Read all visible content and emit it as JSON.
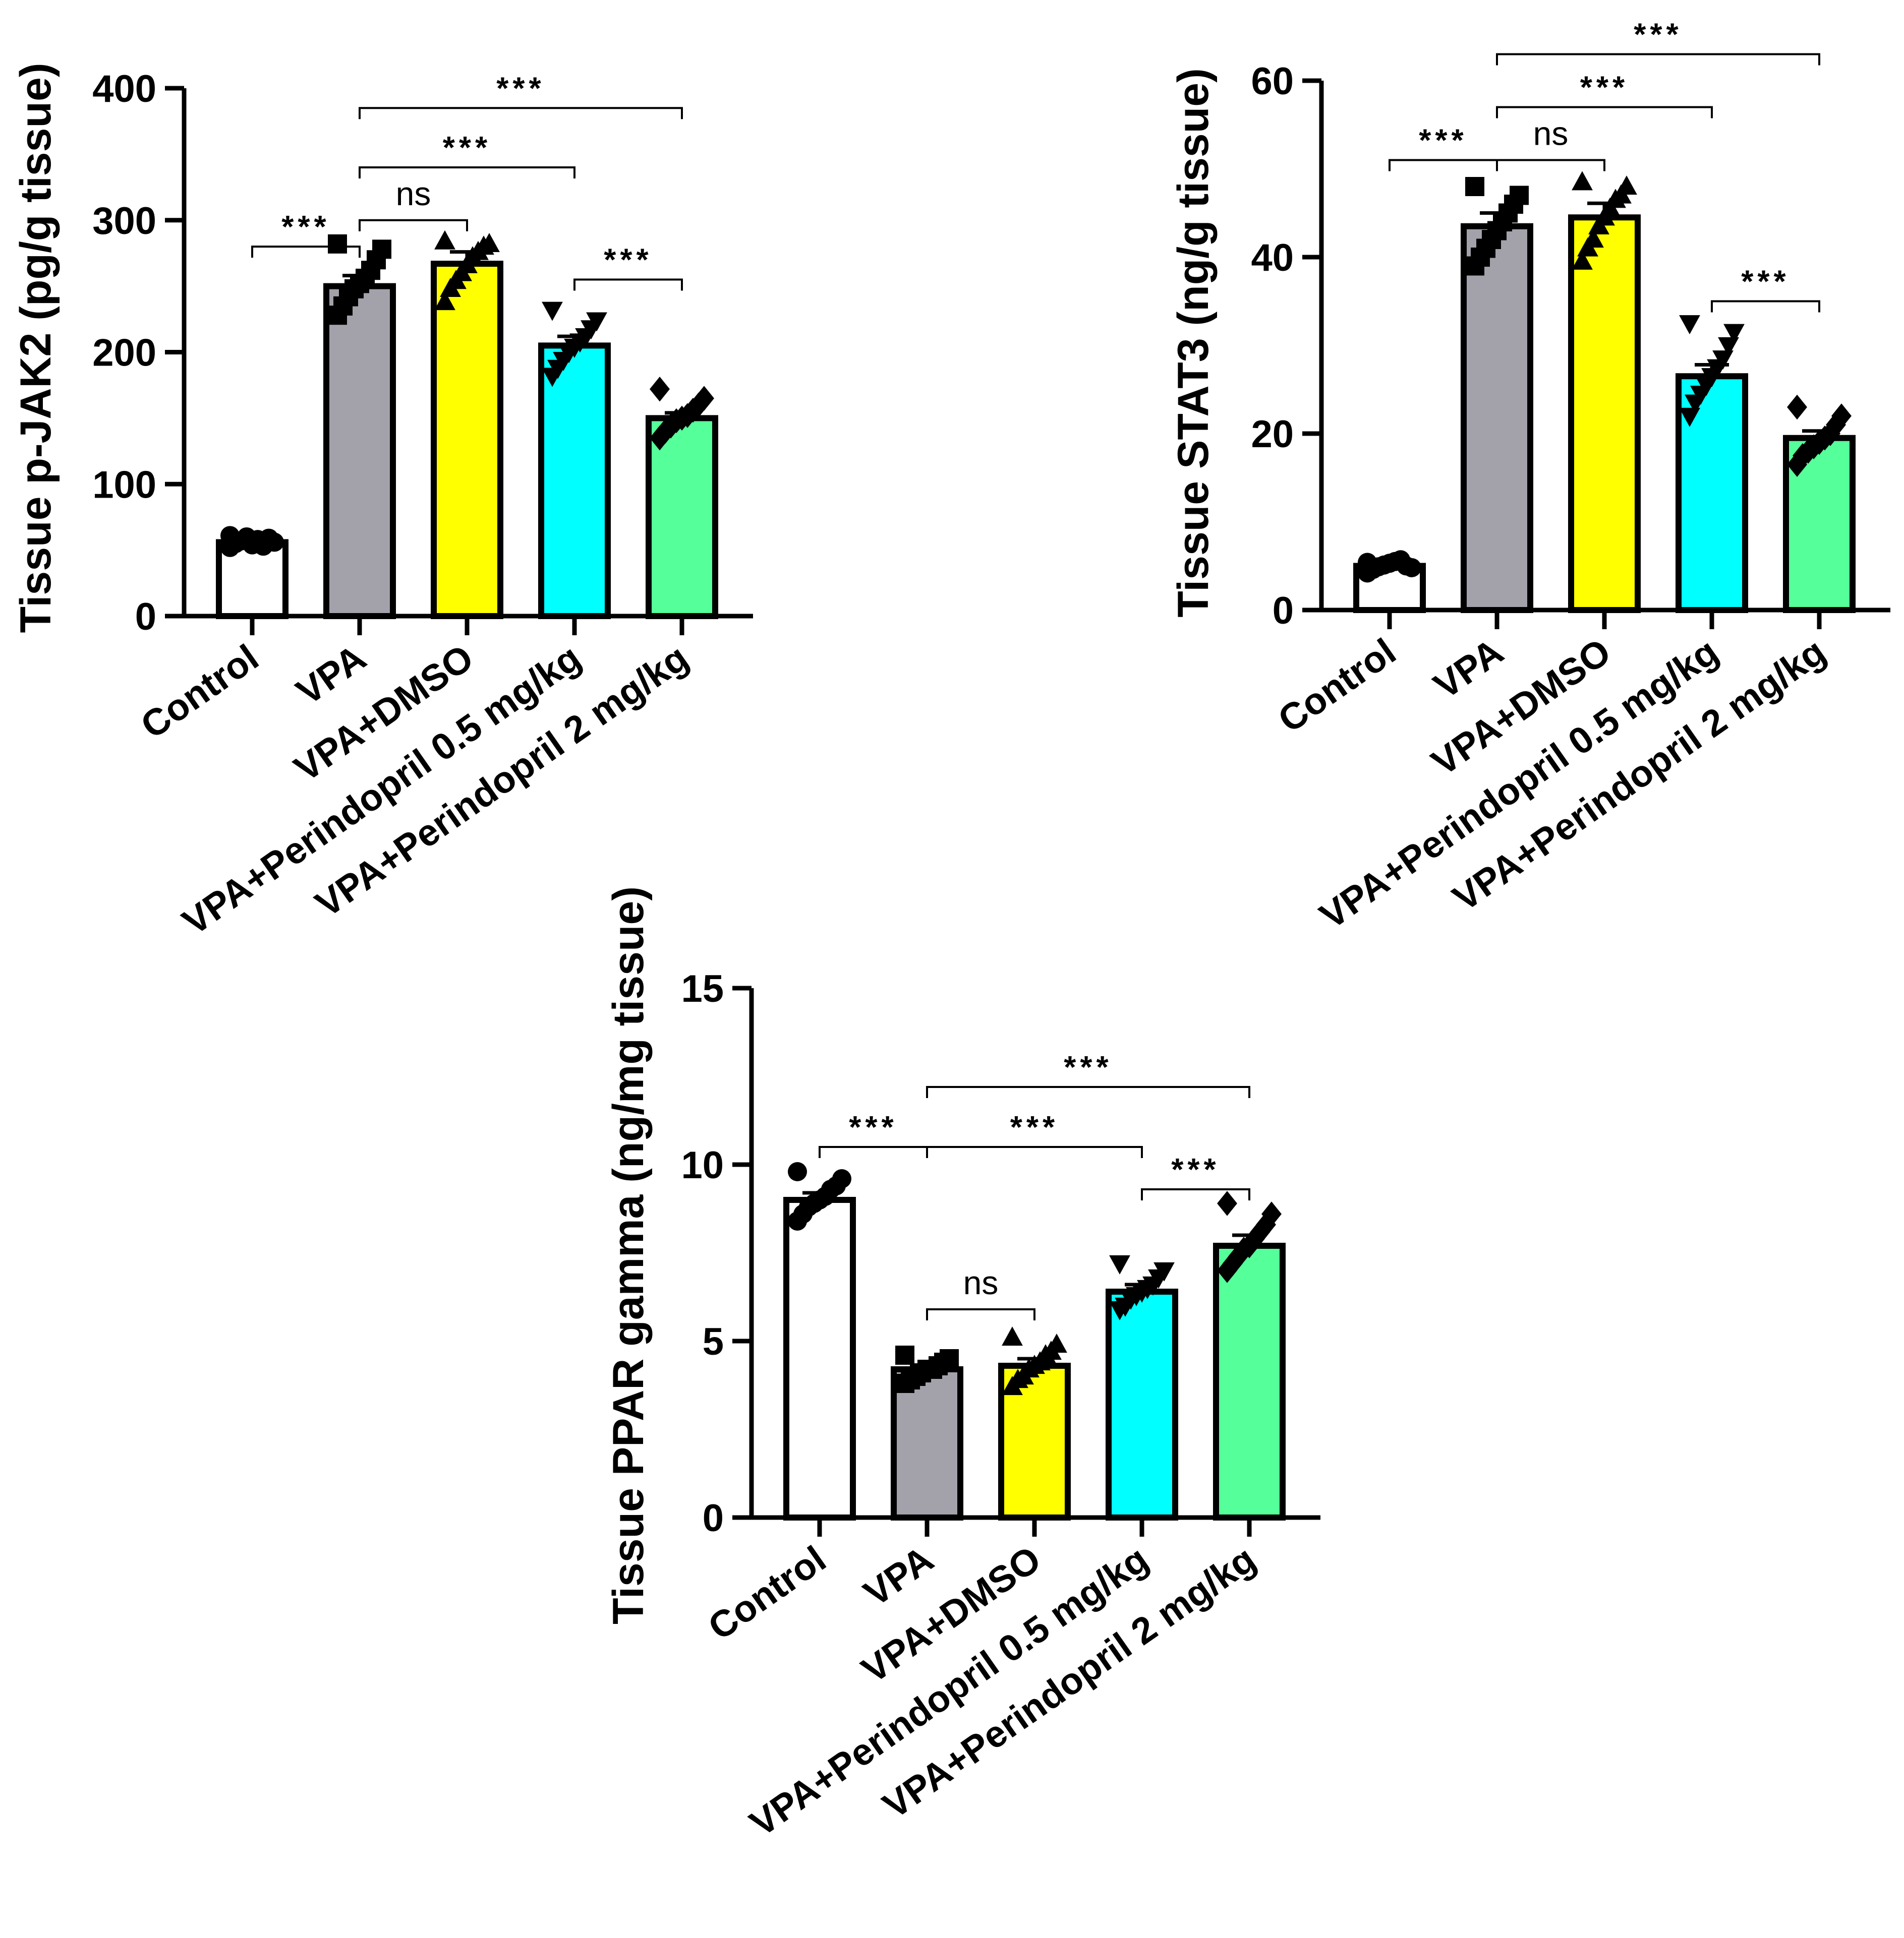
{
  "figure": {
    "colors": {
      "axis": "#000000",
      "bar_fills": [
        "#ffffff",
        "#a3a2ab",
        "#ffff00",
        "#00ffff",
        "#55ff99"
      ],
      "marker": "#000000",
      "bracket": "#000000"
    },
    "marker_shapes": [
      "circle",
      "square",
      "triangle-up",
      "triangle-down",
      "diamond"
    ]
  },
  "chart_data": [
    {
      "id": "jak2",
      "type": "bar",
      "title": "",
      "ylabel": "Tissue p-JAK2 (pg/g tissue)",
      "xlabel": "",
      "ylim": [
        0,
        400
      ],
      "yticks": [
        0,
        100,
        200,
        300,
        400
      ],
      "grid": false,
      "categories": [
        "Control",
        "VPA",
        "VPA+DMSO",
        "VPA+Perindopril 0.5 mg/kg",
        "VPA+Perindopril 2 mg/kg"
      ],
      "values": [
        56,
        250,
        267,
        205,
        150
      ],
      "errors": [
        3,
        8,
        9,
        7,
        4
      ],
      "points": [
        [
          52,
          55,
          57,
          60,
          54,
          58,
          53,
          59,
          56,
          61
        ],
        [
          228,
          235,
          242,
          248,
          252,
          256,
          262,
          270,
          278,
          282
        ],
        [
          238,
          248,
          254,
          260,
          266,
          272,
          276,
          280,
          282,
          284
        ],
        [
          182,
          188,
          194,
          200,
          204,
          208,
          212,
          218,
          224,
          232
        ],
        [
          135,
          140,
          144,
          148,
          150,
          152,
          156,
          160,
          165,
          172
        ]
      ],
      "significance": [
        {
          "from": 0,
          "to": 1,
          "label": "***",
          "level": 280
        },
        {
          "from": 1,
          "to": 2,
          "label": "ns",
          "level": 300
        },
        {
          "from": 1,
          "to": 3,
          "label": "***",
          "level": 340
        },
        {
          "from": 1,
          "to": 4,
          "label": "***",
          "level": 385
        },
        {
          "from": 3,
          "to": 4,
          "label": "***",
          "level": 255
        }
      ]
    },
    {
      "id": "stat3",
      "type": "bar",
      "title": "",
      "ylabel": "Tissue STAT3 (ng/g tissue)",
      "xlabel": "",
      "ylim": [
        0,
        60
      ],
      "yticks": [
        0,
        20,
        40,
        60
      ],
      "grid": false,
      "categories": [
        "Control",
        "VPA",
        "VPA+DMSO",
        "VPA+Perindopril 0.5 mg/kg",
        "VPA+Perindopril 2 mg/kg"
      ],
      "values": [
        5,
        43.5,
        44.5,
        26.5,
        19.5
      ],
      "errors": [
        0.4,
        1.5,
        1.6,
        1.3,
        0.8
      ],
      "points": [
        [
          4.2,
          4.6,
          4.9,
          5.1,
          5.3,
          5.5,
          5.7,
          5.0,
          4.8,
          5.4
        ],
        [
          39,
          40,
          41,
          42,
          43,
          44,
          45,
          46,
          47,
          48
        ],
        [
          39.5,
          41,
          42,
          43.5,
          44.5,
          45.5,
          46.5,
          47,
          48,
          48.5
        ],
        [
          22,
          23.5,
          24.5,
          25.5,
          26.5,
          27.5,
          28.5,
          30,
          31.5,
          32.5
        ],
        [
          16.5,
          17.5,
          18,
          18.5,
          19,
          19.5,
          20,
          21,
          22,
          23
        ]
      ],
      "significance": [
        {
          "from": 0,
          "to": 1,
          "label": "***",
          "level": 51
        },
        {
          "from": 1,
          "to": 2,
          "label": "ns",
          "level": 51
        },
        {
          "from": 1,
          "to": 3,
          "label": "***",
          "level": 57
        },
        {
          "from": 1,
          "to": 4,
          "label": "***",
          "level": 63
        },
        {
          "from": 3,
          "to": 4,
          "label": "***",
          "level": 35
        }
      ]
    },
    {
      "id": "ppar",
      "type": "bar",
      "title": "",
      "ylabel": "Tissue PPAR gamma (ng/mg tissue)",
      "xlabel": "",
      "ylim": [
        0,
        15
      ],
      "yticks": [
        0,
        5,
        10,
        15
      ],
      "grid": false,
      "categories": [
        "Control",
        "VPA",
        "VPA+DMSO",
        "VPA+Perindopril 0.5 mg/kg",
        "VPA+Perindopril 2 mg/kg"
      ],
      "values": [
        9,
        4.2,
        4.3,
        6.4,
        7.7
      ],
      "errors": [
        0.2,
        0.1,
        0.2,
        0.2,
        0.3
      ],
      "points": [
        [
          8.4,
          8.6,
          8.8,
          8.9,
          9.0,
          9.1,
          9.3,
          9.4,
          9.6,
          9.8
        ],
        [
          3.8,
          3.9,
          4.0,
          4.1,
          4.2,
          4.2,
          4.3,
          4.4,
          4.5,
          4.6
        ],
        [
          3.7,
          3.9,
          4.0,
          4.2,
          4.3,
          4.4,
          4.6,
          4.7,
          4.9,
          5.1
        ],
        [
          5.9,
          6.0,
          6.2,
          6.3,
          6.4,
          6.5,
          6.6,
          6.8,
          7.0,
          7.2
        ],
        [
          7.0,
          7.2,
          7.4,
          7.6,
          7.7,
          7.9,
          8.1,
          8.3,
          8.6,
          8.9
        ]
      ],
      "significance": [
        {
          "from": 0,
          "to": 1,
          "label": "***",
          "level": 10.5
        },
        {
          "from": 1,
          "to": 2,
          "label": "ns",
          "level": 5.9
        },
        {
          "from": 1,
          "to": 3,
          "label": "***",
          "level": 10.5
        },
        {
          "from": 1,
          "to": 4,
          "label": "***",
          "level": 12.2
        },
        {
          "from": 3,
          "to": 4,
          "label": "***",
          "level": 9.3
        }
      ]
    }
  ]
}
